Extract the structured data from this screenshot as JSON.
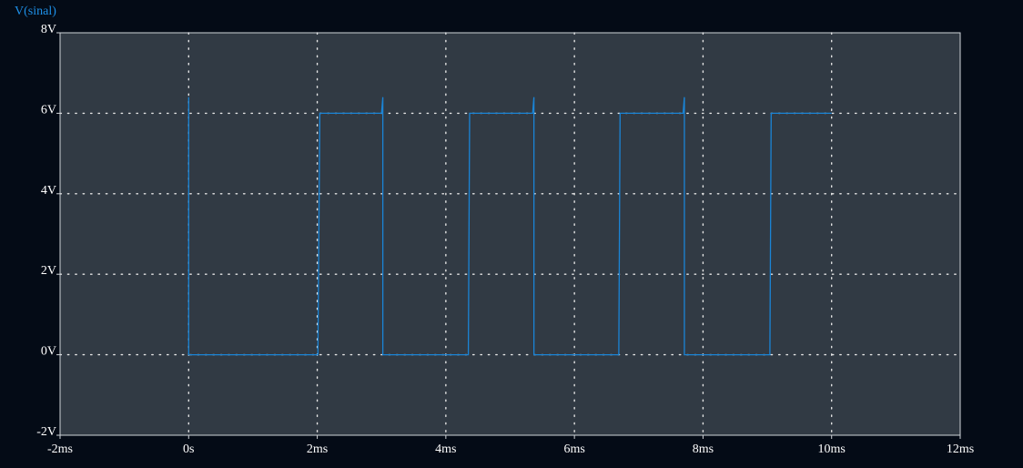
{
  "chart_data": {
    "type": "line",
    "series_title": "V(sinal)",
    "xlim": [
      -2,
      12
    ],
    "ylim": [
      -2,
      8
    ],
    "x_ticks": [
      -2,
      0,
      2,
      4,
      6,
      8,
      10,
      12
    ],
    "x_tick_labels": [
      "-2ms",
      "0s",
      "2ms",
      "4ms",
      "6ms",
      "8ms",
      "10ms",
      "12ms"
    ],
    "y_ticks": [
      -2,
      0,
      2,
      4,
      6,
      8
    ],
    "y_tick_labels": [
      "-2V",
      "0V",
      "2V",
      "4V",
      "6V",
      "8V"
    ],
    "grid": true,
    "series": [
      {
        "name": "V(sinal)",
        "color": "#1a84d6",
        "x": [
          0,
          0,
          0,
          2.01,
          2.04,
          3.0,
          3.02,
          3.02,
          4.35,
          4.37,
          5.35,
          5.37,
          5.37,
          6.69,
          6.71,
          7.69,
          7.71,
          7.71,
          9.04,
          9.06,
          10.0
        ],
        "y": [
          6.4,
          0,
          0,
          0,
          6,
          6,
          6.4,
          0,
          0,
          6,
          6,
          6.4,
          0,
          0,
          6,
          6,
          6.4,
          0,
          0,
          6,
          6
        ]
      }
    ]
  },
  "colors": {
    "background": "#040b16",
    "plot_background": "#313a44",
    "frame": "#cfd4d9",
    "grid": "#e6e6e6",
    "trace": "#1a84d6",
    "title": "#1e90e8"
  }
}
